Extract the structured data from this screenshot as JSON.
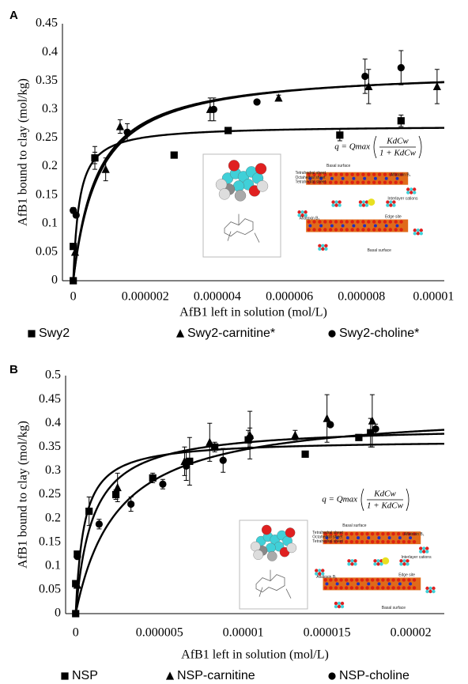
{
  "chart_data": [
    {
      "type": "scatter",
      "panel": "A",
      "y_label": "AfB1 bound to clay (mol/kg)",
      "x_label": "AfB1 left in solution (mol/L)",
      "xlim": [
        -3e-07,
        1.03e-05
      ],
      "xticks": [
        0,
        2e-06,
        4e-06,
        6e-06,
        8e-06,
        1e-05
      ],
      "ylim": [
        0,
        0.45
      ],
      "yticks": [
        0,
        0.05,
        0.1,
        0.15,
        0.2,
        0.25,
        0.3,
        0.35,
        0.4,
        0.45
      ],
      "grid": false,
      "equation": {
        "lhs": "q = Qmax",
        "numerator": "KdCw",
        "denominator": "1 + KdCw"
      },
      "inset_labels": [
        "Basal surface",
        "Tetrahedral sheet",
        "Octahedral sheet",
        "Tetrahedral sheet",
        "Aflatoxin B₁",
        "Interlayer cations",
        "Aflatoxin B₁",
        "Edge site",
        "Basal surface"
      ],
      "series": [
        {
          "name": "Swy2",
          "color": "#000000",
          "marker": "square",
          "x": [
            0,
            0,
            6e-07,
            2.8e-06,
            4.3e-06,
            7.4e-06,
            9.1e-06
          ],
          "values": [
            0,
            0.06,
            0.215,
            0.22,
            0.263,
            0.255,
            0.28
          ],
          "errors": [
            0,
            0.004,
            0.01,
            0.003,
            0.003,
            0.01,
            0.01
          ],
          "fit": {
            "qmax": 0.272,
            "kd": 6000000
          }
        },
        {
          "name": "Swy2-carnitine*",
          "color": "#000000",
          "marker": "triangle",
          "x": [
            5e-08,
            9e-07,
            1.3e-06,
            3.8e-06,
            5.7e-06,
            8.2e-06,
            1.01e-05
          ],
          "values": [
            0.05,
            0.195,
            0.27,
            0.3,
            0.32,
            0.34,
            0.34
          ],
          "errors": [
            0.005,
            0.02,
            0.012,
            0.02,
            0.005,
            0.03,
            0.03
          ],
          "fit": {
            "qmax": 0.37,
            "kd": 1500000
          }
        },
        {
          "name": "Swy2-choline*",
          "color": "#000000",
          "marker": "circle",
          "x": [
            0,
            8e-08,
            6e-07,
            1.5e-06,
            3.9e-06,
            5.1e-06,
            8.1e-06,
            9.1e-06
          ],
          "values": [
            0.123,
            0.115,
            0.215,
            0.26,
            0.3,
            0.313,
            0.358,
            0.373
          ],
          "errors": [
            0.005,
            0.005,
            0.02,
            0.015,
            0.02,
            0.004,
            0.03,
            0.03
          ],
          "fit": {
            "qmax": 0.372,
            "kd": 1400000
          }
        }
      ]
    },
    {
      "type": "scatter",
      "panel": "B",
      "y_label": "AfB1 bound to clay (mol/kg)",
      "x_label": "AfB1 left in solution (mol/L)",
      "xlim": [
        -6e-07,
        2.2e-05
      ],
      "xticks": [
        0,
        5e-06,
        1e-05,
        1.5e-05,
        2e-05
      ],
      "ylim": [
        0,
        0.5
      ],
      "yticks": [
        0,
        0.05,
        0.1,
        0.15,
        0.2,
        0.25,
        0.3,
        0.35,
        0.4,
        0.45,
        0.5
      ],
      "grid": false,
      "equation": {
        "lhs": "q = Qmax",
        "numerator": "KdCw",
        "denominator": "1 + KdCw"
      },
      "inset_labels": [
        "Basal surface",
        "Tetrahedral sheet",
        "Octahedral sheet",
        "Tetrahedral sheet",
        "Aflatoxin B₁",
        "Interlayer cations",
        "Aflatoxin B₁",
        "Edge site",
        "Basal surface"
      ],
      "series": [
        {
          "name": "NSP",
          "color": "#000000",
          "marker": "square",
          "x": [
            0,
            0,
            1e-07,
            8e-07,
            2.4e-06,
            4.6e-06,
            6.8e-06,
            8.3e-06,
            1.03e-05,
            1.37e-05,
            1.69e-05,
            1.76e-05
          ],
          "values": [
            0,
            0.063,
            0.125,
            0.215,
            0.25,
            0.285,
            0.32,
            0.35,
            0.365,
            0.335,
            0.37,
            0.38
          ],
          "errors": [
            0,
            0.005,
            0.005,
            0.03,
            0.01,
            0.01,
            0.05,
            0.01,
            0.02,
            0.005,
            0.005,
            0.03
          ],
          "fit": {
            "qmax": 0.365,
            "kd": 2000000
          }
        },
        {
          "name": "NSP-carnitine",
          "color": "#000000",
          "marker": "triangle",
          "x": [
            1e-07,
            2.5e-06,
            6.5e-06,
            8e-06,
            1.04e-05,
            1.31e-05,
            1.5e-05,
            1.77e-05
          ],
          "values": [
            0.06,
            0.265,
            0.32,
            0.36,
            0.375,
            0.375,
            0.41,
            0.405
          ],
          "errors": [
            0.005,
            0.03,
            0.03,
            0.04,
            0.05,
            0.01,
            0.05,
            0.055
          ],
          "fit": {
            "qmax": 0.395,
            "kd": 1000000
          }
        },
        {
          "name": "NSP-choline",
          "color": "#000000",
          "marker": "circle",
          "x": [
            1e-07,
            1.4e-06,
            3.3e-06,
            5.2e-06,
            6.6e-06,
            8.8e-06,
            1.04e-05,
            1.52e-05,
            1.79e-05
          ],
          "values": [
            0.12,
            0.188,
            0.23,
            0.272,
            0.31,
            0.322,
            0.37,
            0.397,
            0.388
          ],
          "errors": [
            0.005,
            0.01,
            0.015,
            0.01,
            0.03,
            0.025,
            0.02,
            0.005,
            0.01
          ],
          "fit": {
            "qmax": 0.43,
            "kd": 400000
          }
        }
      ]
    }
  ]
}
